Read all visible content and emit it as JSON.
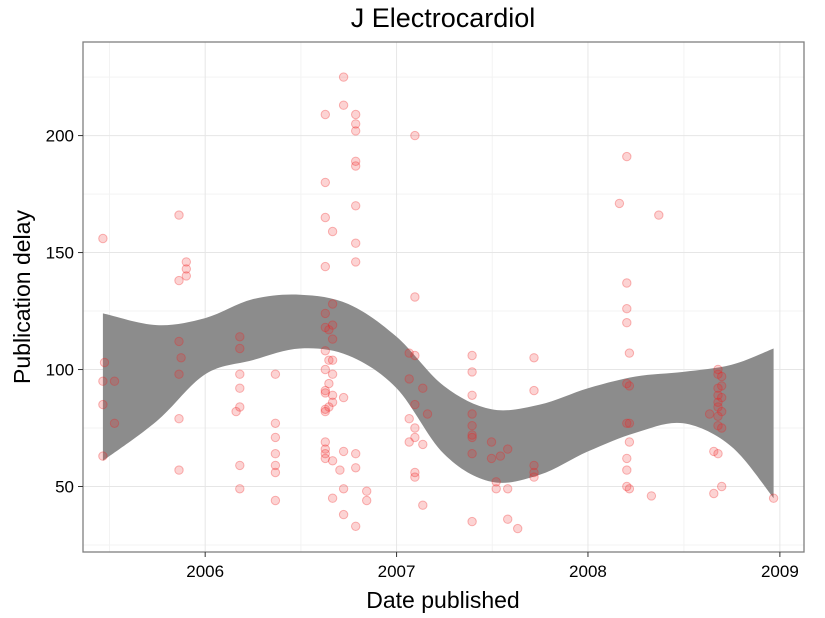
{
  "chart_data": {
    "type": "scatter",
    "title": "J Electrocardiol",
    "xlabel": "Date published",
    "ylabel": "Publication delay",
    "xlim": [
      "2005-05-13",
      "2009-02-16"
    ],
    "ylim": [
      22,
      240
    ],
    "x_ticks": [
      {
        "label": "2006",
        "date": "2006-01-01"
      },
      {
        "label": "2007",
        "date": "2007-01-01"
      },
      {
        "label": "2008",
        "date": "2008-01-01"
      },
      {
        "label": "2009",
        "date": "2009-01-01"
      }
    ],
    "y_ticks": [
      50,
      100,
      150,
      200
    ],
    "grid": true,
    "point_color": "#ee2222",
    "band_color": "#8c8c8c",
    "points": [
      [
        "2005-06-20",
        156
      ],
      [
        "2005-06-20",
        95
      ],
      [
        "2005-06-20",
        85
      ],
      [
        "2005-06-20",
        63
      ],
      [
        "2005-06-23",
        103
      ],
      [
        "2005-07-12",
        95
      ],
      [
        "2005-07-12",
        77
      ],
      [
        "2005-11-12",
        166
      ],
      [
        "2005-11-12",
        138
      ],
      [
        "2005-11-12",
        112
      ],
      [
        "2005-11-12",
        98
      ],
      [
        "2005-11-12",
        79
      ],
      [
        "2005-11-12",
        57
      ],
      [
        "2005-11-16",
        105
      ],
      [
        "2005-11-26",
        146
      ],
      [
        "2005-11-26",
        143
      ],
      [
        "2005-11-26",
        140
      ],
      [
        "2006-03-01",
        82
      ],
      [
        "2006-03-08",
        114
      ],
      [
        "2006-03-08",
        109
      ],
      [
        "2006-03-08",
        98
      ],
      [
        "2006-03-08",
        92
      ],
      [
        "2006-03-08",
        84
      ],
      [
        "2006-03-08",
        59
      ],
      [
        "2006-03-08",
        49
      ],
      [
        "2006-05-15",
        98
      ],
      [
        "2006-05-15",
        77
      ],
      [
        "2006-05-15",
        71
      ],
      [
        "2006-05-15",
        64
      ],
      [
        "2006-05-15",
        59
      ],
      [
        "2006-05-15",
        56
      ],
      [
        "2006-05-15",
        44
      ],
      [
        "2006-08-18",
        209
      ],
      [
        "2006-08-18",
        180
      ],
      [
        "2006-08-18",
        165
      ],
      [
        "2006-08-18",
        144
      ],
      [
        "2006-08-18",
        124
      ],
      [
        "2006-08-18",
        118
      ],
      [
        "2006-08-18",
        108
      ],
      [
        "2006-08-18",
        100
      ],
      [
        "2006-08-18",
        91
      ],
      [
        "2006-08-18",
        90
      ],
      [
        "2006-08-18",
        83
      ],
      [
        "2006-08-18",
        82
      ],
      [
        "2006-08-18",
        69
      ],
      [
        "2006-08-18",
        66
      ],
      [
        "2006-08-18",
        64
      ],
      [
        "2006-08-18",
        62
      ],
      [
        "2006-08-25",
        117
      ],
      [
        "2006-08-25",
        104
      ],
      [
        "2006-08-25",
        94
      ],
      [
        "2006-08-25",
        84
      ],
      [
        "2006-09-01",
        159
      ],
      [
        "2006-09-01",
        128
      ],
      [
        "2006-09-01",
        113
      ],
      [
        "2006-09-01",
        98
      ],
      [
        "2006-09-01",
        89
      ],
      [
        "2006-09-01",
        86
      ],
      [
        "2006-09-01",
        61
      ],
      [
        "2006-09-01",
        45
      ],
      [
        "2006-09-01",
        104
      ],
      [
        "2006-09-01",
        119
      ],
      [
        "2006-09-15",
        57
      ],
      [
        "2006-09-22",
        225
      ],
      [
        "2006-09-22",
        213
      ],
      [
        "2006-09-22",
        88
      ],
      [
        "2006-09-22",
        65
      ],
      [
        "2006-09-22",
        49
      ],
      [
        "2006-09-22",
        38
      ],
      [
        "2006-10-15",
        209
      ],
      [
        "2006-10-15",
        205
      ],
      [
        "2006-10-15",
        202
      ],
      [
        "2006-10-15",
        189
      ],
      [
        "2006-10-15",
        187
      ],
      [
        "2006-10-15",
        170
      ],
      [
        "2006-10-15",
        154
      ],
      [
        "2006-10-15",
        146
      ],
      [
        "2006-10-15",
        64
      ],
      [
        "2006-10-15",
        58
      ],
      [
        "2006-10-15",
        33
      ],
      [
        "2006-11-05",
        48
      ],
      [
        "2006-11-05",
        44
      ],
      [
        "2007-01-25",
        107
      ],
      [
        "2007-01-25",
        96
      ],
      [
        "2007-01-25",
        79
      ],
      [
        "2007-01-25",
        69
      ],
      [
        "2007-02-05",
        200
      ],
      [
        "2007-02-05",
        131
      ],
      [
        "2007-02-05",
        106
      ],
      [
        "2007-02-05",
        85
      ],
      [
        "2007-02-05",
        75
      ],
      [
        "2007-02-05",
        71
      ],
      [
        "2007-02-05",
        56
      ],
      [
        "2007-02-05",
        54
      ],
      [
        "2007-02-20",
        92
      ],
      [
        "2007-02-20",
        68
      ],
      [
        "2007-02-20",
        42
      ],
      [
        "2007-03-01",
        81
      ],
      [
        "2007-05-25",
        106
      ],
      [
        "2007-05-25",
        99
      ],
      [
        "2007-05-25",
        89
      ],
      [
        "2007-05-25",
        81
      ],
      [
        "2007-05-25",
        76
      ],
      [
        "2007-05-25",
        72
      ],
      [
        "2007-05-25",
        71
      ],
      [
        "2007-05-25",
        64
      ],
      [
        "2007-05-25",
        35
      ],
      [
        "2007-07-01",
        69
      ],
      [
        "2007-07-01",
        62
      ],
      [
        "2007-07-10",
        52
      ],
      [
        "2007-07-10",
        49
      ],
      [
        "2007-07-18",
        63
      ],
      [
        "2007-08-01",
        66
      ],
      [
        "2007-08-01",
        49
      ],
      [
        "2007-08-01",
        36
      ],
      [
        "2007-08-20",
        32
      ],
      [
        "2007-09-20",
        105
      ],
      [
        "2007-09-20",
        91
      ],
      [
        "2007-09-20",
        59
      ],
      [
        "2007-09-20",
        56
      ],
      [
        "2007-09-20",
        54
      ],
      [
        "2008-03-01",
        171
      ],
      [
        "2008-03-15",
        191
      ],
      [
        "2008-03-15",
        137
      ],
      [
        "2008-03-15",
        126
      ],
      [
        "2008-03-15",
        120
      ],
      [
        "2008-03-15",
        94
      ],
      [
        "2008-03-15",
        77
      ],
      [
        "2008-03-15",
        62
      ],
      [
        "2008-03-15",
        57
      ],
      [
        "2008-03-15",
        50
      ],
      [
        "2008-03-20",
        107
      ],
      [
        "2008-03-20",
        93
      ],
      [
        "2008-03-20",
        77
      ],
      [
        "2008-03-20",
        69
      ],
      [
        "2008-03-20",
        49
      ],
      [
        "2008-05-01",
        46
      ],
      [
        "2008-05-15",
        166
      ],
      [
        "2008-08-20",
        81
      ],
      [
        "2008-08-28",
        47
      ],
      [
        "2008-08-28",
        65
      ],
      [
        "2008-09-05",
        100
      ],
      [
        "2008-09-05",
        98
      ],
      [
        "2008-09-05",
        92
      ],
      [
        "2008-09-05",
        89
      ],
      [
        "2008-09-05",
        86
      ],
      [
        "2008-09-05",
        84
      ],
      [
        "2008-09-05",
        80
      ],
      [
        "2008-09-05",
        76
      ],
      [
        "2008-09-05",
        64
      ],
      [
        "2008-09-12",
        97
      ],
      [
        "2008-09-12",
        93
      ],
      [
        "2008-09-12",
        88
      ],
      [
        "2008-09-12",
        82
      ],
      [
        "2008-09-12",
        75
      ],
      [
        "2008-09-12",
        50
      ],
      [
        "2008-12-20",
        45
      ]
    ],
    "smooth_band": {
      "x": [
        "2005-06-20",
        "2005-10-01",
        "2006-01-01",
        "2006-04-01",
        "2006-07-01",
        "2006-10-01",
        "2007-01-01",
        "2007-04-01",
        "2007-07-01",
        "2007-10-01",
        "2008-01-01",
        "2008-04-01",
        "2008-07-01",
        "2008-10-01",
        "2008-12-20"
      ],
      "lower": [
        61,
        78,
        98,
        104,
        109,
        106,
        92,
        64,
        52,
        55,
        65,
        73,
        77,
        67,
        45
      ],
      "upper": [
        124,
        119,
        122,
        130,
        132,
        128,
        114,
        93,
        83,
        85,
        92,
        97,
        99,
        102,
        109
      ]
    }
  }
}
